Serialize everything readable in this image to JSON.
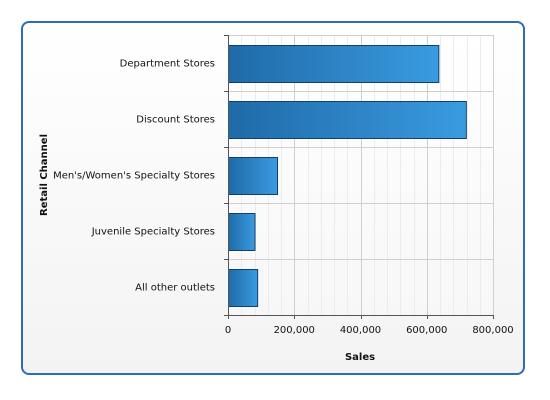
{
  "chart_data": {
    "type": "bar",
    "orientation": "horizontal",
    "title": "",
    "xlabel": "Sales",
    "ylabel": "Retail Channel",
    "categories": [
      "Department Stores",
      "Discount Stores",
      "Men's/Women's Specialty Stores",
      "Juvenile Specialty Stores",
      "All other outlets"
    ],
    "values": [
      635000,
      718000,
      148000,
      80000,
      88000
    ],
    "xlim": [
      0,
      800000
    ],
    "x_ticks": [
      0,
      200000,
      400000,
      600000,
      800000
    ],
    "x_tick_labels": [
      "0",
      "200,000",
      "400,000",
      "600,000",
      "800,000"
    ],
    "grid": true,
    "colors": {
      "bar_light": "#3a9be0",
      "bar_dark": "#1f6aa8",
      "bar_stroke": "#10406e",
      "frame": "#2a6fb5",
      "grid_major": "#cfcfcf",
      "grid_minor": "#ececec",
      "axis": "#555555"
    }
  }
}
